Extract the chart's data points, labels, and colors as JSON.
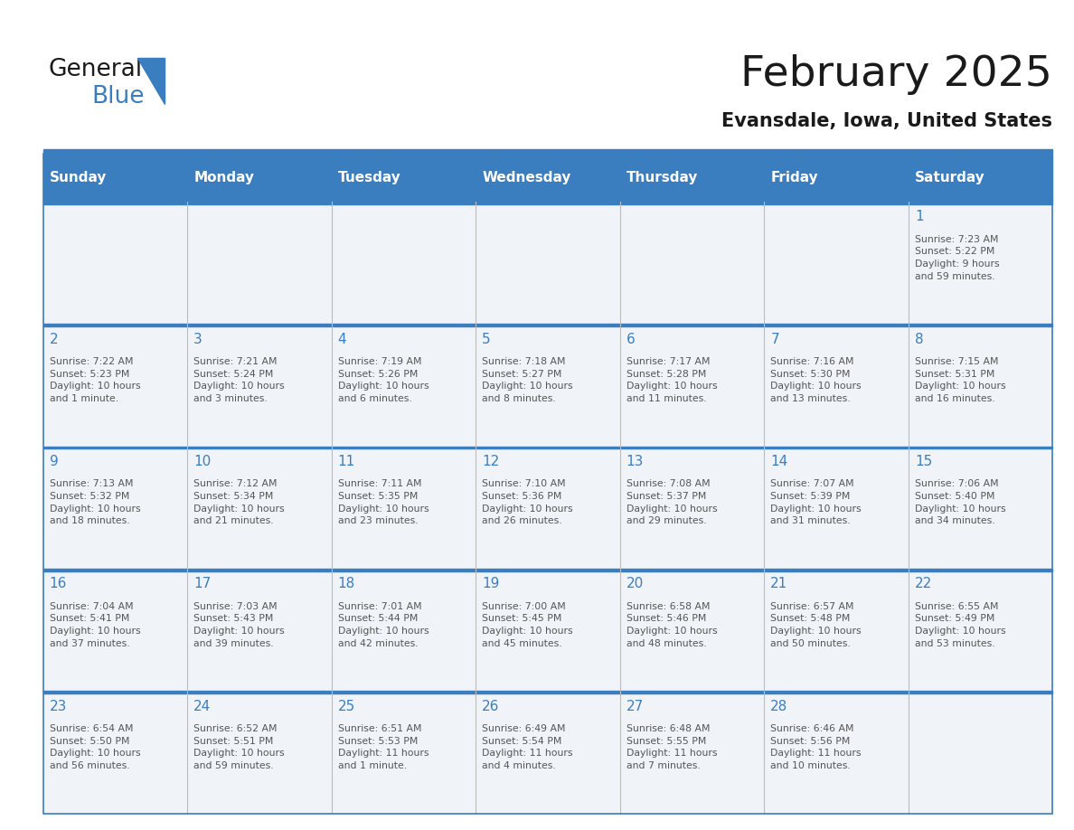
{
  "title": "February 2025",
  "subtitle": "Evansdale, Iowa, United States",
  "header_bg": "#3a7ebf",
  "header_text": "#ffffff",
  "cell_bg_light": "#f0f4f8",
  "day_number_color": "#3a7ebf",
  "info_text_color": "#555555",
  "border_color": "#3a7ebf",
  "days_of_week": [
    "Sunday",
    "Monday",
    "Tuesday",
    "Wednesday",
    "Thursday",
    "Friday",
    "Saturday"
  ],
  "weeks": [
    [
      {
        "day": "",
        "info": ""
      },
      {
        "day": "",
        "info": ""
      },
      {
        "day": "",
        "info": ""
      },
      {
        "day": "",
        "info": ""
      },
      {
        "day": "",
        "info": ""
      },
      {
        "day": "",
        "info": ""
      },
      {
        "day": "1",
        "info": "Sunrise: 7:23 AM\nSunset: 5:22 PM\nDaylight: 9 hours\nand 59 minutes."
      }
    ],
    [
      {
        "day": "2",
        "info": "Sunrise: 7:22 AM\nSunset: 5:23 PM\nDaylight: 10 hours\nand 1 minute."
      },
      {
        "day": "3",
        "info": "Sunrise: 7:21 AM\nSunset: 5:24 PM\nDaylight: 10 hours\nand 3 minutes."
      },
      {
        "day": "4",
        "info": "Sunrise: 7:19 AM\nSunset: 5:26 PM\nDaylight: 10 hours\nand 6 minutes."
      },
      {
        "day": "5",
        "info": "Sunrise: 7:18 AM\nSunset: 5:27 PM\nDaylight: 10 hours\nand 8 minutes."
      },
      {
        "day": "6",
        "info": "Sunrise: 7:17 AM\nSunset: 5:28 PM\nDaylight: 10 hours\nand 11 minutes."
      },
      {
        "day": "7",
        "info": "Sunrise: 7:16 AM\nSunset: 5:30 PM\nDaylight: 10 hours\nand 13 minutes."
      },
      {
        "day": "8",
        "info": "Sunrise: 7:15 AM\nSunset: 5:31 PM\nDaylight: 10 hours\nand 16 minutes."
      }
    ],
    [
      {
        "day": "9",
        "info": "Sunrise: 7:13 AM\nSunset: 5:32 PM\nDaylight: 10 hours\nand 18 minutes."
      },
      {
        "day": "10",
        "info": "Sunrise: 7:12 AM\nSunset: 5:34 PM\nDaylight: 10 hours\nand 21 minutes."
      },
      {
        "day": "11",
        "info": "Sunrise: 7:11 AM\nSunset: 5:35 PM\nDaylight: 10 hours\nand 23 minutes."
      },
      {
        "day": "12",
        "info": "Sunrise: 7:10 AM\nSunset: 5:36 PM\nDaylight: 10 hours\nand 26 minutes."
      },
      {
        "day": "13",
        "info": "Sunrise: 7:08 AM\nSunset: 5:37 PM\nDaylight: 10 hours\nand 29 minutes."
      },
      {
        "day": "14",
        "info": "Sunrise: 7:07 AM\nSunset: 5:39 PM\nDaylight: 10 hours\nand 31 minutes."
      },
      {
        "day": "15",
        "info": "Sunrise: 7:06 AM\nSunset: 5:40 PM\nDaylight: 10 hours\nand 34 minutes."
      }
    ],
    [
      {
        "day": "16",
        "info": "Sunrise: 7:04 AM\nSunset: 5:41 PM\nDaylight: 10 hours\nand 37 minutes."
      },
      {
        "day": "17",
        "info": "Sunrise: 7:03 AM\nSunset: 5:43 PM\nDaylight: 10 hours\nand 39 minutes."
      },
      {
        "day": "18",
        "info": "Sunrise: 7:01 AM\nSunset: 5:44 PM\nDaylight: 10 hours\nand 42 minutes."
      },
      {
        "day": "19",
        "info": "Sunrise: 7:00 AM\nSunset: 5:45 PM\nDaylight: 10 hours\nand 45 minutes."
      },
      {
        "day": "20",
        "info": "Sunrise: 6:58 AM\nSunset: 5:46 PM\nDaylight: 10 hours\nand 48 minutes."
      },
      {
        "day": "21",
        "info": "Sunrise: 6:57 AM\nSunset: 5:48 PM\nDaylight: 10 hours\nand 50 minutes."
      },
      {
        "day": "22",
        "info": "Sunrise: 6:55 AM\nSunset: 5:49 PM\nDaylight: 10 hours\nand 53 minutes."
      }
    ],
    [
      {
        "day": "23",
        "info": "Sunrise: 6:54 AM\nSunset: 5:50 PM\nDaylight: 10 hours\nand 56 minutes."
      },
      {
        "day": "24",
        "info": "Sunrise: 6:52 AM\nSunset: 5:51 PM\nDaylight: 10 hours\nand 59 minutes."
      },
      {
        "day": "25",
        "info": "Sunrise: 6:51 AM\nSunset: 5:53 PM\nDaylight: 11 hours\nand 1 minute."
      },
      {
        "day": "26",
        "info": "Sunrise: 6:49 AM\nSunset: 5:54 PM\nDaylight: 11 hours\nand 4 minutes."
      },
      {
        "day": "27",
        "info": "Sunrise: 6:48 AM\nSunset: 5:55 PM\nDaylight: 11 hours\nand 7 minutes."
      },
      {
        "day": "28",
        "info": "Sunrise: 6:46 AM\nSunset: 5:56 PM\nDaylight: 11 hours\nand 10 minutes."
      },
      {
        "day": "",
        "info": ""
      }
    ]
  ]
}
